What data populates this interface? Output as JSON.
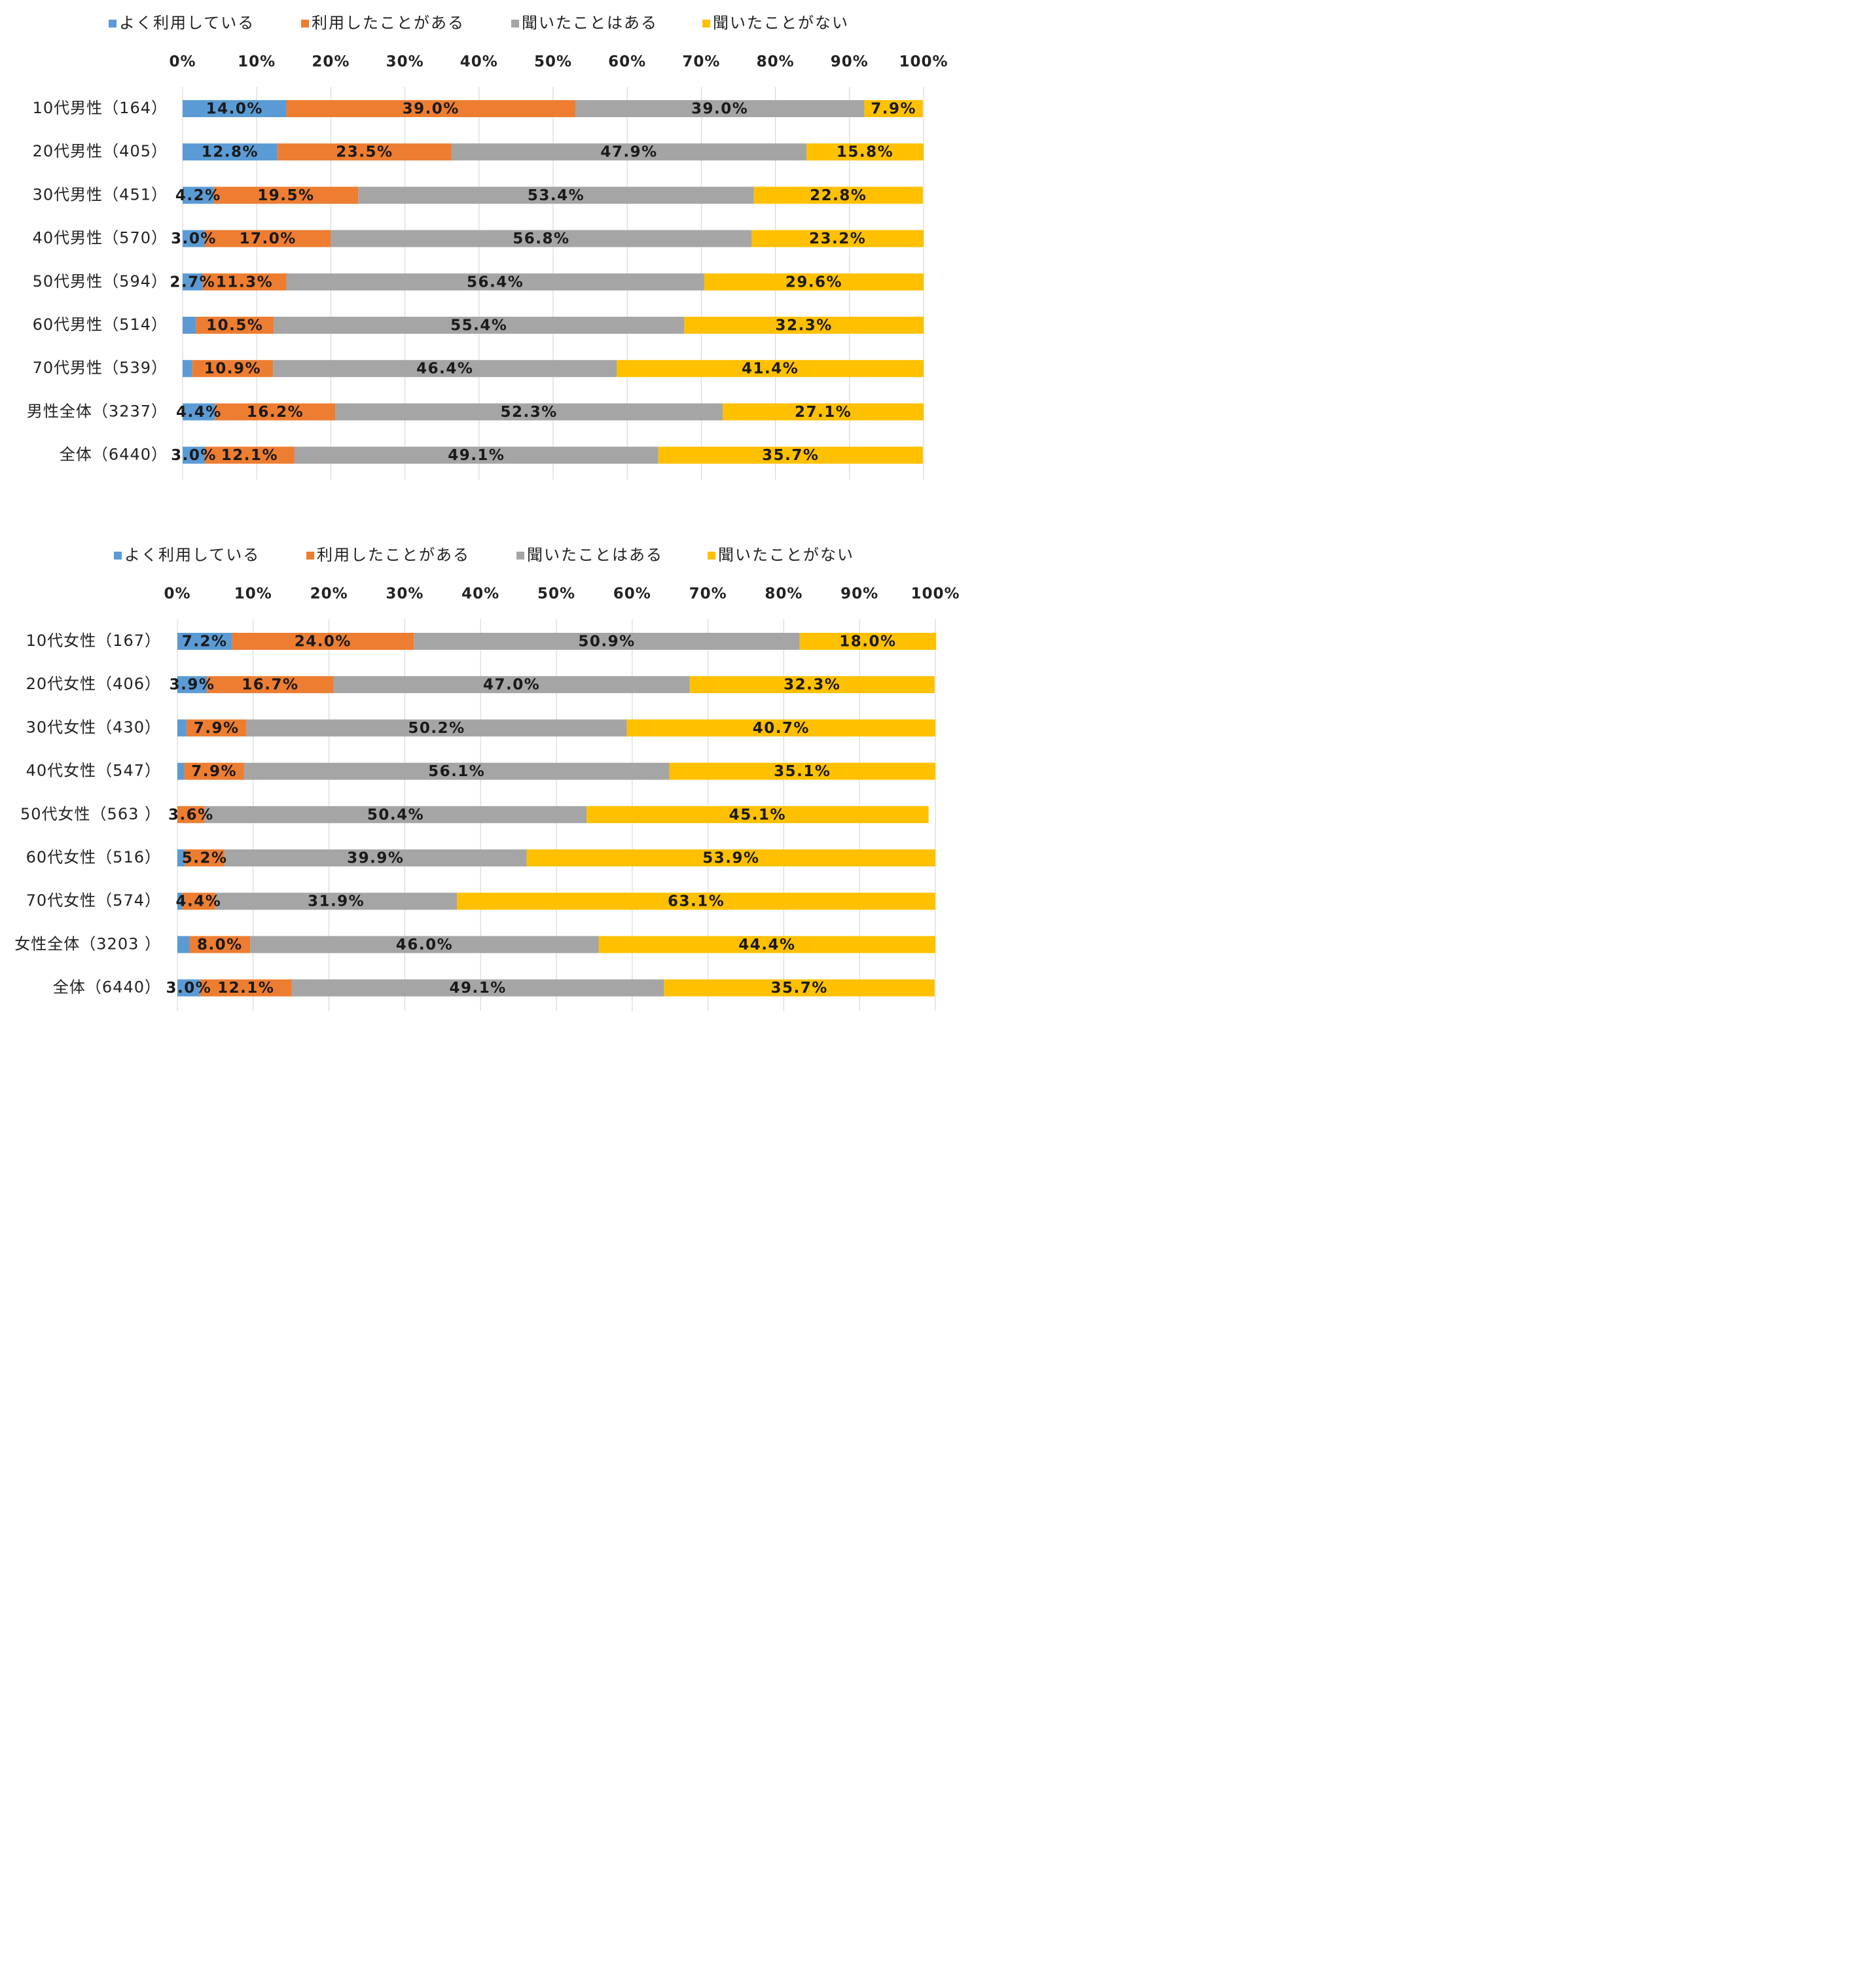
{
  "legend_title": "",
  "chart_data": [
    {
      "type": "bar",
      "orientation": "horizontal",
      "stacked": "percent",
      "title": "",
      "xlabel": "",
      "ylabel": "",
      "xlim": [
        0,
        100
      ],
      "x_ticks": [
        "0%",
        "10%",
        "20%",
        "30%",
        "40%",
        "50%",
        "60%",
        "70%",
        "80%",
        "90%",
        "100%"
      ],
      "grid": true,
      "legend_position": "top",
      "categories": [
        "10代男性（164）",
        "20代男性（405）",
        "30代男性（451）",
        "40代男性（570）",
        "50代男性（594）",
        "60代男性（514）",
        "70代男性（539）",
        "男性全体（3237）",
        "全体（6440）"
      ],
      "series": [
        {
          "name": "よく利用している",
          "color": "#5b9bd5",
          "values": [
            14.0,
            12.8,
            4.2,
            3.0,
            2.7,
            1.8,
            1.3,
            4.4,
            3.0
          ],
          "labels": [
            "14.0%",
            "12.8%",
            "4.2%",
            "3.0%",
            "2.7%",
            "",
            "",
            "4.4%",
            "3.0%"
          ]
        },
        {
          "name": "利用したことがある",
          "color": "#ed7d31",
          "values": [
            39.0,
            23.5,
            19.5,
            17.0,
            11.3,
            10.5,
            10.9,
            16.2,
            12.1
          ],
          "labels": [
            "39.0%",
            "23.5%",
            "19.5%",
            "17.0%",
            "11.3%",
            "10.5%",
            "10.9%",
            "16.2%",
            "12.1%"
          ]
        },
        {
          "name": "聞いたことはある",
          "color": "#a5a5a5",
          "values": [
            39.0,
            47.9,
            53.4,
            56.8,
            56.4,
            55.4,
            46.4,
            52.3,
            49.1
          ],
          "labels": [
            "39.0%",
            "47.9%",
            "53.4%",
            "56.8%",
            "56.4%",
            "55.4%",
            "46.4%",
            "52.3%",
            "49.1%"
          ]
        },
        {
          "name": "聞いたことがない",
          "color": "#ffc000",
          "values": [
            7.9,
            15.8,
            22.8,
            23.2,
            29.6,
            32.3,
            41.4,
            27.1,
            35.7
          ],
          "labels": [
            "7.9%",
            "15.8%",
            "22.8%",
            "23.2%",
            "29.6%",
            "32.3%",
            "41.4%",
            "27.1%",
            "35.7%"
          ]
        }
      ]
    },
    {
      "type": "bar",
      "orientation": "horizontal",
      "stacked": "percent",
      "title": "",
      "xlabel": "",
      "ylabel": "",
      "xlim": [
        0,
        100
      ],
      "x_ticks": [
        "0%",
        "10%",
        "20%",
        "30%",
        "40%",
        "50%",
        "60%",
        "70%",
        "80%",
        "90%",
        "100%"
      ],
      "grid": true,
      "legend_position": "top",
      "categories": [
        "10代女性（167）",
        "20代女性（406）",
        "30代女性（430）",
        "40代女性（547）",
        "50代女性（563 ）",
        "60代女性（516）",
        "70代女性（574）",
        "女性全体（3203 ）",
        "全体（6440）"
      ],
      "series": [
        {
          "name": "よく利用している",
          "color": "#5b9bd5",
          "values": [
            7.2,
            3.9,
            1.2,
            0.9,
            0.0,
            1.0,
            0.6,
            1.6,
            3.0
          ],
          "labels": [
            "7.2%",
            "3.9%",
            "",
            "",
            "",
            "",
            "",
            "",
            "3.0%"
          ]
        },
        {
          "name": "利用したことがある",
          "color": "#ed7d31",
          "values": [
            24.0,
            16.7,
            7.9,
            7.9,
            3.6,
            5.2,
            4.4,
            8.0,
            12.1
          ],
          "labels": [
            "24.0%",
            "16.7%",
            "7.9%",
            "7.9%",
            "3.6%",
            "5.2%",
            "4.4%",
            "8.0%",
            "12.1%"
          ]
        },
        {
          "name": "聞いたことはある",
          "color": "#a5a5a5",
          "values": [
            50.9,
            47.0,
            50.2,
            56.1,
            50.4,
            39.9,
            31.9,
            46.0,
            49.1
          ],
          "labels": [
            "50.9%",
            "47.0%",
            "50.2%",
            "56.1%",
            "50.4%",
            "39.9%",
            "31.9%",
            "46.0%",
            "49.1%"
          ]
        },
        {
          "name": "聞いたことがない",
          "color": "#ffc000",
          "values": [
            18.0,
            32.3,
            40.7,
            35.1,
            45.1,
            53.9,
            63.1,
            44.4,
            35.7
          ],
          "labels": [
            "18.0%",
            "32.3%",
            "40.7%",
            "35.1%",
            "45.1%",
            "53.9%",
            "63.1%",
            "44.4%",
            "35.7%"
          ]
        }
      ]
    }
  ]
}
